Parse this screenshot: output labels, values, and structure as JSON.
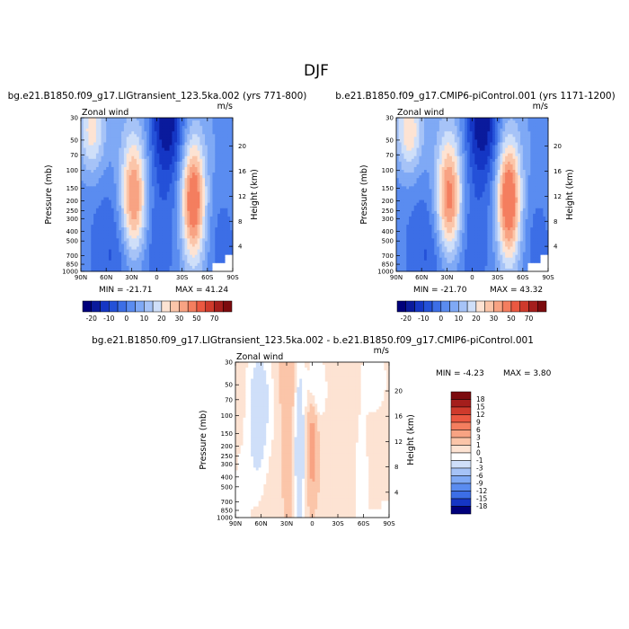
{
  "figure": {
    "title": "DJF"
  },
  "chart_data": [
    {
      "type": "heatmap",
      "title": "bg.e21.B1850.f09_g17.LIGtransient_123.5ka.002 (yrs 771-800)",
      "variable": "Zonal wind",
      "units": "m/s",
      "xlabel": "",
      "ylabel": "Pressure (mb)",
      "y2label": "Height (km)",
      "x_ticks": [
        "90N",
        "60N",
        "30N",
        "0",
        "30S",
        "60S",
        "90S"
      ],
      "x_tick_values": [
        90,
        60,
        30,
        0,
        -30,
        -60,
        -90
      ],
      "y_ticks": [
        "30",
        "50",
        "70",
        "100",
        "150",
        "200",
        "250",
        "300",
        "400",
        "500",
        "700",
        "850",
        "1000"
      ],
      "y_tick_values": [
        30,
        50,
        70,
        100,
        150,
        200,
        250,
        300,
        400,
        500,
        700,
        850,
        1000
      ],
      "y_scale": "log",
      "y2_ticks": [
        "4",
        "8",
        "12",
        "16",
        "20"
      ],
      "y2_tick_values": [
        4,
        8,
        12,
        16,
        20
      ],
      "xlim": [
        90,
        -90
      ],
      "ylim": [
        1000,
        30
      ],
      "min_label": "MIN = -21.71",
      "max_label": "MAX = 41.24",
      "min": -21.71,
      "max": 41.24,
      "colorbar_ticks": [
        "-20",
        "-10",
        "0",
        "10",
        "20",
        "30",
        "50",
        "70"
      ],
      "features": [
        {
          "lat": 27,
          "p": 200,
          "amp": 35,
          "sx": 11,
          "sy": 1.0
        },
        {
          "lat": -43,
          "p": 200,
          "amp": 38,
          "sx": 10,
          "sy": 0.95
        },
        {
          "lat": 77,
          "p": 40,
          "amp": 20,
          "sx": 11,
          "sy": 0.7
        },
        {
          "lat": -12,
          "p": 32,
          "amp": -24,
          "sx": 14,
          "sy": 0.95
        },
        {
          "lat": 5,
          "p": 420,
          "amp": -9,
          "sx": 26,
          "sy": 1.1
        },
        {
          "lat": 55,
          "p": 500,
          "amp": -7,
          "sx": 16,
          "sy": 1.0
        },
        {
          "lat": -75,
          "p": 600,
          "amp": -6,
          "sx": 12,
          "sy": 1.0
        },
        {
          "lat": 38,
          "p": 950,
          "amp": -4,
          "sx": 18,
          "sy": 0.6
        }
      ]
    },
    {
      "type": "heatmap",
      "title": "b.e21.B1850.f09_g17.CMIP6-piControl.001 (yrs 1171-1200)",
      "variable": "Zonal wind",
      "units": "m/s",
      "xlabel": "",
      "ylabel": "Pressure (mb)",
      "y2label": "Height (km)",
      "x_ticks": [
        "90N",
        "60N",
        "30N",
        "0",
        "30S",
        "60S",
        "90S"
      ],
      "x_tick_values": [
        90,
        60,
        30,
        0,
        -30,
        -60,
        -90
      ],
      "y_ticks": [
        "30",
        "50",
        "70",
        "100",
        "150",
        "200",
        "250",
        "300",
        "400",
        "500",
        "700",
        "850",
        "1000"
      ],
      "y_tick_values": [
        30,
        50,
        70,
        100,
        150,
        200,
        250,
        300,
        400,
        500,
        700,
        850,
        1000
      ],
      "y_scale": "log",
      "y2_ticks": [
        "4",
        "8",
        "12",
        "16",
        "20"
      ],
      "y2_tick_values": [
        4,
        8,
        12,
        16,
        20
      ],
      "xlim": [
        90,
        -90
      ],
      "ylim": [
        1000,
        30
      ],
      "min_label": "MIN = -21.70",
      "max_label": "MAX = 43.32",
      "min": -21.7,
      "max": 43.32,
      "colorbar_ticks": [
        "-20",
        "-10",
        "0",
        "10",
        "20",
        "30",
        "50",
        "70"
      ],
      "features": [
        {
          "lat": 27,
          "p": 200,
          "amp": 37,
          "sx": 11,
          "sy": 1.0
        },
        {
          "lat": -43,
          "p": 200,
          "amp": 40,
          "sx": 10,
          "sy": 0.95
        },
        {
          "lat": 75,
          "p": 40,
          "amp": 22,
          "sx": 11,
          "sy": 0.7
        },
        {
          "lat": -12,
          "p": 32,
          "amp": -24,
          "sx": 14,
          "sy": 0.95
        },
        {
          "lat": 5,
          "p": 420,
          "amp": -9,
          "sx": 26,
          "sy": 1.1
        },
        {
          "lat": 55,
          "p": 500,
          "amp": -7,
          "sx": 16,
          "sy": 1.0
        },
        {
          "lat": -75,
          "p": 600,
          "amp": -6,
          "sx": 12,
          "sy": 1.0
        },
        {
          "lat": 38,
          "p": 950,
          "amp": -4,
          "sx": 18,
          "sy": 0.6
        }
      ]
    },
    {
      "type": "heatmap",
      "title": "bg.e21.B1850.f09_g17.LIGtransient_123.5ka.002 - b.e21.B1850.f09_g17.CMIP6-piControl.001",
      "variable": "Zonal wind",
      "units": "m/s",
      "xlabel": "",
      "ylabel": "Pressure (mb)",
      "y2label": "Height (km)",
      "x_ticks": [
        "90N",
        "60N",
        "30N",
        "0",
        "30S",
        "60S",
        "90S"
      ],
      "x_tick_values": [
        90,
        60,
        30,
        0,
        -30,
        -60,
        -90
      ],
      "y_ticks": [
        "30",
        "50",
        "70",
        "100",
        "150",
        "200",
        "250",
        "300",
        "400",
        "500",
        "700",
        "850",
        "1000"
      ],
      "y_tick_values": [
        30,
        50,
        70,
        100,
        150,
        200,
        250,
        300,
        400,
        500,
        700,
        850,
        1000
      ],
      "y_scale": "log",
      "y2_ticks": [
        "4",
        "8",
        "12",
        "16",
        "20"
      ],
      "y2_tick_values": [
        4,
        8,
        12,
        16,
        20
      ],
      "xlim": [
        90,
        -90
      ],
      "ylim": [
        1000,
        30
      ],
      "min_label": "MIN = -4.23",
      "max_label": "MAX = 3.80",
      "min": -4.23,
      "max": 3.8,
      "colorbar_ticks": [
        "18",
        "15",
        "12",
        "9",
        "6",
        "3",
        "1",
        "0",
        "-1",
        "-3",
        "-6",
        "-9",
        "-12",
        "-15",
        "-18"
      ],
      "baseline": 0.5,
      "features": [
        {
          "lat": 60,
          "p": 70,
          "amp": -1.9,
          "sx": 10,
          "sy": 0.9
        },
        {
          "lat": 65,
          "p": 150,
          "amp": -1.6,
          "sx": 7,
          "sy": 1.0
        },
        {
          "lat": 28,
          "p": 300,
          "amp": 2.3,
          "sx": 4,
          "sy": 1.2
        },
        {
          "lat": 15,
          "p": 250,
          "amp": -3.4,
          "sx": 4,
          "sy": 1.5
        },
        {
          "lat": 0,
          "p": 180,
          "amp": 3.6,
          "sx": 4,
          "sy": 0.6
        },
        {
          "lat": 0,
          "p": 400,
          "amp": 1.4,
          "sx": 5,
          "sy": 0.6
        },
        {
          "lat": -5,
          "p": 55,
          "amp": -1.5,
          "sx": 8,
          "sy": 0.5
        },
        {
          "lat": 30,
          "p": 45,
          "amp": 1.5,
          "sx": 8,
          "sy": 0.5
        },
        {
          "lat": -58,
          "p": 550,
          "amp": -1.5,
          "sx": 5,
          "sy": 1.1
        },
        {
          "lat": -72,
          "p": 45,
          "amp": -1.4,
          "sx": 10,
          "sy": 0.5
        },
        {
          "lat": 82,
          "p": 700,
          "amp": -1.3,
          "sx": 6,
          "sy": 0.8
        }
      ]
    }
  ],
  "colorbars": {
    "full": {
      "colors": [
        "#00007a",
        "#0a1a9c",
        "#1536c4",
        "#2451d8",
        "#3c6ee6",
        "#5a8cf0",
        "#7fa9f5",
        "#a6c3f7",
        "#cfdff9",
        "#fde3d3",
        "#fbc5a9",
        "#f8a383",
        "#f47e5f",
        "#eb5841",
        "#cf3a2c",
        "#a51e1c",
        "#7c0b0e"
      ],
      "bounds": [
        -25,
        -20,
        -15,
        -10,
        -5,
        0,
        5,
        10,
        15,
        20,
        25,
        30,
        40,
        50,
        60,
        70
      ],
      "labels": [
        "-20",
        "-10",
        "0",
        "10",
        "20",
        "30",
        "50",
        "70"
      ],
      "label_after_index": [
        0,
        2,
        4,
        6,
        8,
        10,
        12,
        14
      ]
    },
    "diff": {
      "colors": [
        "#7c0b0e",
        "#a51e1c",
        "#cf3a2c",
        "#eb5841",
        "#f47e5f",
        "#f8a383",
        "#fbc5a9",
        "#fde3d3",
        "#ffffff",
        "#cfdff9",
        "#a6c3f7",
        "#7fa9f5",
        "#5a8cf0",
        "#3c6ee6",
        "#1536c4",
        "#00007a"
      ],
      "bounds": [
        18,
        15,
        12,
        9,
        6,
        3,
        1,
        0,
        -1,
        -3,
        -6,
        -9,
        -12,
        -15,
        -18
      ],
      "labels": [
        "18",
        "15",
        "12",
        "9",
        "6",
        "3",
        "1",
        "0",
        "-1",
        "-3",
        "-6",
        "-9",
        "-12",
        "-15",
        "-18"
      ]
    }
  }
}
